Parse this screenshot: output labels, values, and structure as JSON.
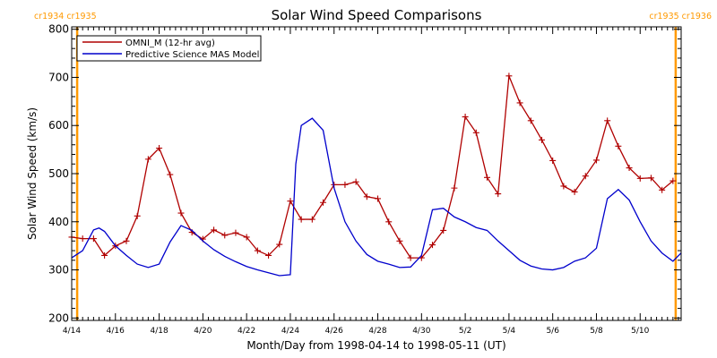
{
  "chart_data": {
    "type": "line",
    "title": "Solar Wind Speed Comparisons",
    "xlabel": "Month/Day from 1998-04-14 to 1998-05-11 (UT)",
    "ylabel": "Solar Wind Speed (km/s)",
    "xlim": [
      "1998-04-14T00:00",
      "1998-05-11T21:00"
    ],
    "ylim": [
      195,
      805
    ],
    "grid": false,
    "legend_position": "top-left",
    "x_ticks": [
      {
        "date": "1998-04-14",
        "label": "4/14"
      },
      {
        "date": "1998-04-16",
        "label": "4/16"
      },
      {
        "date": "1998-04-18",
        "label": "4/18"
      },
      {
        "date": "1998-04-20",
        "label": "4/20"
      },
      {
        "date": "1998-04-22",
        "label": "4/22"
      },
      {
        "date": "1998-04-24",
        "label": "4/24"
      },
      {
        "date": "1998-04-26",
        "label": "4/26"
      },
      {
        "date": "1998-04-28",
        "label": "4/28"
      },
      {
        "date": "1998-04-30",
        "label": "4/30"
      },
      {
        "date": "1998-05-02",
        "label": "5/2"
      },
      {
        "date": "1998-05-04",
        "label": "5/4"
      },
      {
        "date": "1998-05-06",
        "label": "5/6"
      },
      {
        "date": "1998-05-08",
        "label": "5/8"
      },
      {
        "date": "1998-05-10",
        "label": "5/10"
      }
    ],
    "y_ticks": [
      200,
      300,
      400,
      500,
      600,
      700,
      800
    ],
    "carrington_markers": [
      {
        "date": "1998-04-14T06:00",
        "label": "cr1934 cr1935",
        "color": "#ff9900",
        "align": "left"
      },
      {
        "date": "1998-05-11T15:00",
        "label": "cr1935 cr1936",
        "color": "#ff9900",
        "align": "right"
      }
    ],
    "series": [
      {
        "name": "OMNI_M (12-hr avg)",
        "color": "#b00000",
        "marker": "plus",
        "x": [
          "1998-04-14T00:00",
          "1998-04-14T12:00",
          "1998-04-15T00:00",
          "1998-04-15T12:00",
          "1998-04-16T00:00",
          "1998-04-16T12:00",
          "1998-04-17T00:00",
          "1998-04-17T12:00",
          "1998-04-18T00:00",
          "1998-04-18T12:00",
          "1998-04-19T00:00",
          "1998-04-19T12:00",
          "1998-04-20T00:00",
          "1998-04-20T12:00",
          "1998-04-21T00:00",
          "1998-04-21T12:00",
          "1998-04-22T00:00",
          "1998-04-22T12:00",
          "1998-04-23T00:00",
          "1998-04-23T12:00",
          "1998-04-24T00:00",
          "1998-04-24T12:00",
          "1998-04-25T00:00",
          "1998-04-25T12:00",
          "1998-04-26T00:00",
          "1998-04-26T12:00",
          "1998-04-27T00:00",
          "1998-04-27T12:00",
          "1998-04-28T00:00",
          "1998-04-28T12:00",
          "1998-04-29T00:00",
          "1998-04-29T12:00",
          "1998-04-30T00:00",
          "1998-04-30T12:00",
          "1998-05-01T00:00",
          "1998-05-01T12:00",
          "1998-05-02T00:00",
          "1998-05-02T12:00",
          "1998-05-03T00:00",
          "1998-05-03T12:00",
          "1998-05-04T00:00",
          "1998-05-04T12:00",
          "1998-05-05T00:00",
          "1998-05-05T12:00",
          "1998-05-06T00:00",
          "1998-05-06T12:00",
          "1998-05-07T00:00",
          "1998-05-07T12:00",
          "1998-05-08T00:00",
          "1998-05-08T12:00",
          "1998-05-09T00:00",
          "1998-05-09T12:00",
          "1998-05-10T00:00",
          "1998-05-10T12:00",
          "1998-05-11T00:00",
          "1998-05-11T12:00"
        ],
        "y": [
          368,
          365,
          365,
          330,
          350,
          360,
          412,
          530,
          553,
          498,
          418,
          378,
          364,
          383,
          372,
          377,
          368,
          340,
          330,
          353,
          443,
          405,
          405,
          440,
          477,
          477,
          483,
          452,
          448,
          400,
          360,
          325,
          325,
          352,
          382,
          470,
          618,
          585,
          492,
          458,
          703,
          647,
          610,
          570,
          527,
          474,
          462,
          495,
          528,
          610,
          557,
          512,
          490,
          491,
          466,
          485
        ]
      },
      {
        "name": "Predictive Science MAS Model",
        "color": "#0000cc",
        "marker": "none",
        "x": [
          "1998-04-14T00:00",
          "1998-04-14T12:00",
          "1998-04-15T00:00",
          "1998-04-15T06:00",
          "1998-04-15T12:00",
          "1998-04-16T00:00",
          "1998-04-16T12:00",
          "1998-04-17T00:00",
          "1998-04-17T12:00",
          "1998-04-18T00:00",
          "1998-04-18T12:00",
          "1998-04-19T00:00",
          "1998-04-19T12:00",
          "1998-04-20T00:00",
          "1998-04-20T12:00",
          "1998-04-21T00:00",
          "1998-04-21T12:00",
          "1998-04-22T00:00",
          "1998-04-22T12:00",
          "1998-04-23T00:00",
          "1998-04-23T12:00",
          "1998-04-24T00:00",
          "1998-04-24T06:00",
          "1998-04-24T12:00",
          "1998-04-25T00:00",
          "1998-04-25T12:00",
          "1998-04-26T00:00",
          "1998-04-26T12:00",
          "1998-04-27T00:00",
          "1998-04-27T12:00",
          "1998-04-28T00:00",
          "1998-04-28T12:00",
          "1998-04-29T00:00",
          "1998-04-29T12:00",
          "1998-04-30T00:00",
          "1998-04-30T12:00",
          "1998-05-01T00:00",
          "1998-05-01T12:00",
          "1998-05-02T00:00",
          "1998-05-02T12:00",
          "1998-05-03T00:00",
          "1998-05-03T12:00",
          "1998-05-04T00:00",
          "1998-05-04T12:00",
          "1998-05-05T00:00",
          "1998-05-05T12:00",
          "1998-05-06T00:00",
          "1998-05-06T12:00",
          "1998-05-07T00:00",
          "1998-05-07T12:00",
          "1998-05-08T00:00",
          "1998-05-08T12:00",
          "1998-05-09T00:00",
          "1998-05-09T12:00",
          "1998-05-10T00:00",
          "1998-05-10T12:00",
          "1998-05-11T00:00",
          "1998-05-11T12:00",
          "1998-05-11T21:00"
        ],
        "y": [
          325,
          340,
          383,
          387,
          380,
          350,
          330,
          312,
          305,
          312,
          358,
          392,
          382,
          360,
          342,
          328,
          317,
          307,
          300,
          294,
          288,
          290,
          520,
          600,
          615,
          590,
          470,
          400,
          360,
          332,
          318,
          312,
          305,
          306,
          330,
          425,
          428,
          410,
          400,
          388,
          382,
          360,
          340,
          320,
          308,
          302,
          300,
          305,
          318,
          325,
          345,
          448,
          467,
          445,
          400,
          360,
          335,
          318,
          335
        ]
      }
    ]
  }
}
